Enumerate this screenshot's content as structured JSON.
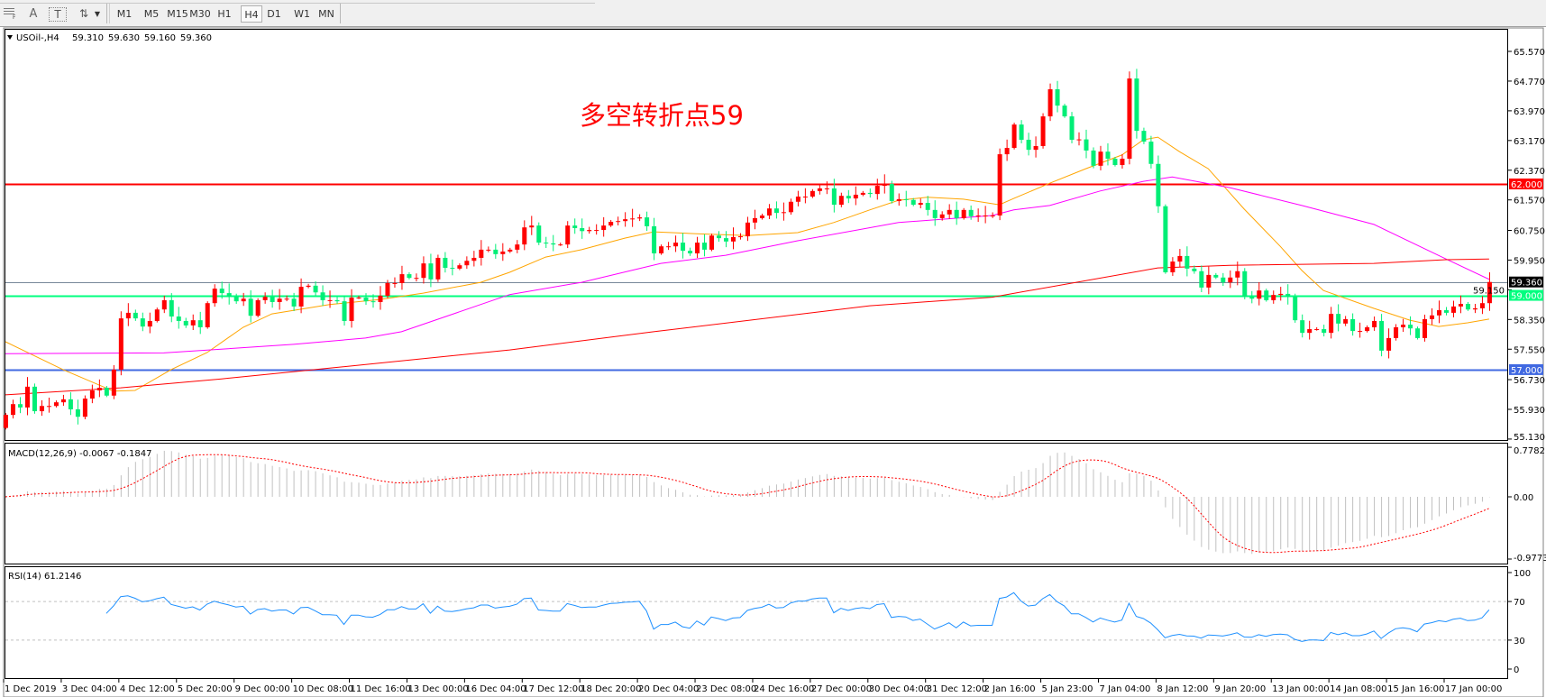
{
  "toolbar": {
    "icons": [
      "grid-fibonacci-icon",
      "text-icon",
      "text-label-icon",
      "arrows-icon"
    ],
    "text_icon_glyph": "A",
    "label_icon_glyph": "T",
    "timeframes": [
      "M1",
      "M5",
      "M15",
      "M30",
      "H1",
      "H4",
      "D1",
      "W1",
      "MN"
    ],
    "active_timeframe": "H4"
  },
  "chart_header": {
    "symbol": "USOil-,H4",
    "open": "59.310",
    "high": "59.630",
    "low": "59.160",
    "close": "59.360"
  },
  "annotation": "多空转折点59",
  "colors": {
    "bull_candle": "#ff0000",
    "bear_candle": "#00ee76",
    "ma_fast": "#ffa500",
    "ma_mid": "#ff00ff",
    "ma_slow": "#ff0000",
    "rsi_line": "#1e90ff",
    "macd_histogram": "#c0c0c0",
    "macd_signal": "#ff0000",
    "current_price_line": "#778899"
  },
  "chart_data": [
    {
      "type": "bar",
      "style": "candlestick",
      "symbol": "USOil-",
      "timeframe": "H4",
      "close": [
        55.78,
        56.07,
        55.98,
        56.54,
        55.88,
        56.02,
        56.02,
        56.12,
        56.2,
        55.93,
        55.73,
        56.22,
        56.44,
        56.51,
        56.3,
        57.0,
        58.38,
        58.53,
        58.38,
        58.16,
        58.31,
        58.62,
        58.87,
        58.43,
        58.31,
        58.19,
        58.33,
        58.14,
        58.79,
        59.18,
        59.06,
        58.96,
        58.84,
        58.91,
        58.45,
        58.87,
        58.96,
        58.82,
        58.91,
        58.91,
        58.7,
        59.23,
        59.26,
        59.08,
        58.87,
        58.87,
        58.84,
        58.31,
        58.94,
        58.94,
        58.84,
        58.82,
        58.99,
        59.33,
        59.33,
        59.57,
        59.47,
        59.47,
        59.86,
        59.43,
        60.01,
        59.74,
        59.72,
        59.81,
        59.93,
        60.01,
        60.23,
        60.23,
        60.11,
        60.18,
        60.23,
        60.37,
        60.83,
        60.88,
        60.42,
        60.4,
        60.37,
        60.37,
        60.88,
        60.81,
        60.73,
        60.76,
        60.76,
        60.88,
        60.98,
        61.0,
        61.05,
        61.07,
        61.1,
        60.86,
        60.13,
        60.32,
        60.32,
        60.42,
        60.2,
        60.13,
        60.42,
        60.23,
        60.61,
        60.54,
        60.45,
        60.57,
        60.59,
        60.96,
        61.08,
        61.15,
        61.34,
        61.22,
        61.24,
        61.52,
        61.66,
        61.66,
        61.81,
        61.88,
        61.88,
        61.44,
        61.68,
        61.61,
        61.71,
        61.76,
        61.73,
        61.95,
        62.0,
        61.54,
        61.59,
        61.57,
        61.44,
        61.49,
        61.3,
        61.08,
        61.18,
        61.3,
        61.08,
        61.3,
        61.13,
        61.15,
        61.15,
        61.15,
        62.8,
        62.97,
        63.6,
        63.19,
        62.92,
        63.02,
        63.82,
        64.55,
        64.11,
        63.82,
        63.19,
        63.2,
        62.9,
        62.49,
        62.87,
        62.68,
        62.51,
        62.68,
        64.84,
        63.43,
        63.14,
        62.54,
        61.4,
        59.62,
        59.91,
        60.06,
        59.72,
        59.65,
        59.21,
        59.55,
        59.48,
        59.35,
        59.48,
        59.65,
        58.96,
        58.91,
        59.13,
        58.87,
        59.01,
        59.04,
        58.96,
        58.33,
        57.99,
        58.09,
        58.09,
        57.99,
        58.5,
        58.24,
        58.36,
        58.04,
        58.04,
        58.14,
        58.31,
        57.51,
        57.85,
        58.14,
        58.21,
        58.11,
        57.85,
        58.36,
        58.46,
        58.6,
        58.53,
        58.7,
        58.77,
        58.62,
        58.65,
        58.79,
        59.36
      ],
      "moving_averages": [
        {
          "color_key": "ma_fast",
          "points": [
            [
              0,
              57.75
            ],
            [
              8,
              57.0
            ],
            [
              15,
              56.42
            ],
            [
              18,
              56.44
            ],
            [
              23,
              57.0
            ],
            [
              28,
              57.46
            ],
            [
              33,
              58.14
            ],
            [
              37,
              58.5
            ],
            [
              45,
              58.75
            ],
            [
              52,
              58.89
            ],
            [
              58,
              59.06
            ],
            [
              66,
              59.35
            ],
            [
              70,
              59.62
            ],
            [
              75,
              60.03
            ],
            [
              80,
              60.23
            ],
            [
              86,
              60.54
            ],
            [
              90,
              60.71
            ],
            [
              96,
              60.66
            ],
            [
              103,
              60.61
            ],
            [
              110,
              60.69
            ],
            [
              115,
              60.96
            ],
            [
              120,
              61.3
            ],
            [
              124,
              61.56
            ],
            [
              128,
              61.64
            ],
            [
              133,
              61.59
            ],
            [
              138,
              61.44
            ],
            [
              140,
              61.61
            ],
            [
              145,
              62.02
            ],
            [
              150,
              62.41
            ],
            [
              155,
              62.78
            ],
            [
              158,
              63.19
            ],
            [
              160,
              63.26
            ],
            [
              163,
              62.87
            ],
            [
              167,
              62.41
            ],
            [
              172,
              61.32
            ],
            [
              177,
              60.32
            ],
            [
              180,
              59.67
            ],
            [
              183,
              59.13
            ],
            [
              190,
              58.65
            ],
            [
              195,
              58.33
            ],
            [
              199,
              58.16
            ],
            [
              203,
              58.26
            ],
            [
              206,
              58.36
            ]
          ]
        },
        {
          "color_key": "ma_mid",
          "points": [
            [
              0,
              57.43
            ],
            [
              22,
              57.45
            ],
            [
              40,
              57.68
            ],
            [
              50,
              57.85
            ],
            [
              55,
              58.02
            ],
            [
              70,
              59.02
            ],
            [
              80,
              59.35
            ],
            [
              91,
              59.86
            ],
            [
              100,
              60.08
            ],
            [
              110,
              60.47
            ],
            [
              124,
              60.96
            ],
            [
              137,
              61.15
            ],
            [
              140,
              61.3
            ],
            [
              145,
              61.42
            ],
            [
              152,
              61.81
            ],
            [
              158,
              62.07
            ],
            [
              162,
              62.19
            ],
            [
              170,
              61.9
            ],
            [
              180,
              61.42
            ],
            [
              190,
              60.91
            ],
            [
              200,
              59.98
            ],
            [
              206,
              59.43
            ]
          ]
        },
        {
          "color_key": "ma_slow",
          "points": [
            [
              0,
              56.32
            ],
            [
              16,
              56.51
            ],
            [
              30,
              56.75
            ],
            [
              45,
              57.04
            ],
            [
              70,
              57.53
            ],
            [
              90,
              58.02
            ],
            [
              120,
              58.72
            ],
            [
              137,
              58.95
            ],
            [
              160,
              59.74
            ],
            [
              170,
              59.81
            ],
            [
              190,
              59.86
            ],
            [
              200,
              59.96
            ],
            [
              206,
              59.98
            ]
          ]
        }
      ],
      "horizontal_lines": [
        {
          "price": 62.0,
          "label": "62.000",
          "color": "#ff0000"
        },
        {
          "price": 59.0,
          "label": "59.000",
          "color": "#00ff7f"
        },
        {
          "price": 57.0,
          "label": "57.000",
          "color": "#4169e1"
        },
        {
          "price": 59.36,
          "label": "59.360",
          "color": "#778899",
          "label_bg": "#000000"
        }
      ],
      "y_tick_labels": [
        "65.570",
        "64.770",
        "63.970",
        "63.170",
        "62.370",
        "61.570",
        "60.750",
        "59.950",
        "59.150",
        "58.350",
        "57.550",
        "56.730",
        "55.930",
        "55.130"
      ],
      "ylim": [
        55.13,
        65.57
      ],
      "x_tick_labels": [
        "1 Dec 2019",
        "3 Dec 04:00",
        "4 Dec 12:00",
        "5 Dec 20:00",
        "9 Dec 00:00",
        "10 Dec 08:00",
        "11 Dec 16:00",
        "13 Dec 00:00",
        "16 Dec 04:00",
        "17 Dec 12:00",
        "18 Dec 20:00",
        "20 Dec 04:00",
        "23 Dec 08:00",
        "24 Dec 16:00",
        "27 Dec 00:00",
        "30 Dec 04:00",
        "31 Dec 12:00",
        "2 Jan 16:00",
        "5 Jan 23:00",
        "7 Jan 04:00",
        "8 Jan 12:00",
        "9 Jan 20:00",
        "13 Jan 00:00",
        "14 Jan 08:00",
        "15 Jan 16:00",
        "17 Jan 00:00"
      ]
    },
    {
      "type": "bar",
      "title": "MACD(12,26,9) -0.0067 -0.1847",
      "name": "MACD(12,26,9)",
      "main_value": "-0.0067",
      "signal_value": "-0.1847",
      "y_tick_labels": [
        "0.7782",
        "0.00",
        "-0.9773"
      ],
      "ylim": [
        -0.9773,
        0.7782
      ]
    },
    {
      "type": "line",
      "title": "RSI(14) 61.2146",
      "name": "RSI(14)",
      "value": "61.2146",
      "levels": [
        70,
        30
      ],
      "y_tick_labels": [
        "100",
        "70",
        "30",
        "0"
      ],
      "ylim": [
        0,
        100
      ]
    }
  ]
}
